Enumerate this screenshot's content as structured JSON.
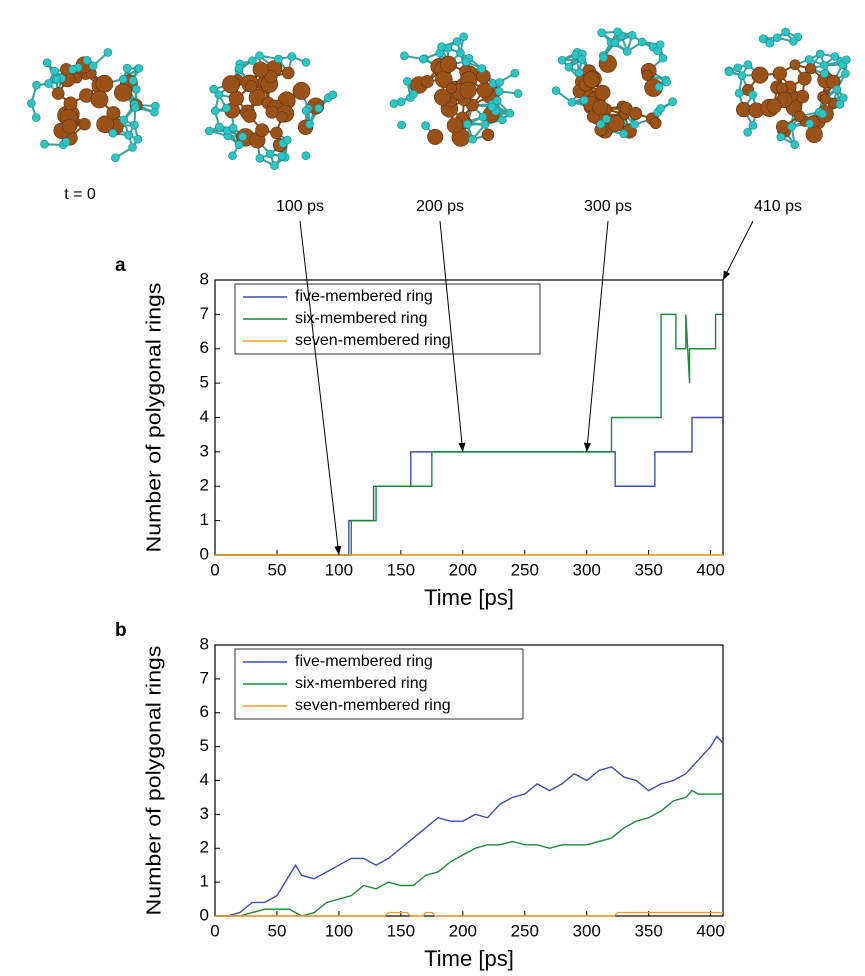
{
  "chart_data": [
    {
      "type": "line",
      "label": "a",
      "xlabel": "Time [ps]",
      "ylabel": "Number of polygonal rings",
      "xlim": [
        0,
        410
      ],
      "xticks": [
        0,
        50,
        100,
        150,
        200,
        250,
        300,
        350,
        400
      ],
      "ylim": [
        0,
        8
      ],
      "yticks": [
        0,
        1,
        2,
        3,
        4,
        5,
        6,
        7,
        8
      ],
      "legend": "upper left",
      "series": [
        {
          "name": "five-membered ring",
          "color": "#3b4fb0",
          "x": [
            0,
            108,
            108,
            128,
            128,
            158,
            158,
            323,
            323,
            355,
            355,
            385,
            385,
            410
          ],
          "values": [
            0,
            0,
            1,
            1,
            2,
            2,
            3,
            3,
            2,
            2,
            3,
            3,
            4,
            4
          ]
        },
        {
          "name": "six-membered ring",
          "color": "#1f8a3a",
          "x": [
            0,
            110,
            110,
            130,
            130,
            175,
            175,
            320,
            320,
            360,
            360,
            372,
            372,
            380,
            380,
            383,
            383,
            386,
            386,
            404,
            404,
            410
          ],
          "values": [
            0,
            0,
            1,
            1,
            2,
            2,
            3,
            3,
            4,
            4,
            7,
            7,
            6,
            6,
            7,
            5,
            6,
            6,
            6,
            6,
            7,
            7
          ]
        },
        {
          "name": "seven-membered ring",
          "color": "#f0a030",
          "x": [
            0,
            410
          ],
          "values": [
            0,
            0
          ]
        }
      ],
      "annotations": [
        {
          "text": "t = 0"
        },
        {
          "text": "100 ps",
          "x": 100,
          "y": 0
        },
        {
          "text": "200 ps",
          "x": 200,
          "y": 3
        },
        {
          "text": "300 ps",
          "x": 300,
          "y": 3
        },
        {
          "text": "410 ps",
          "x": 410,
          "y": 8
        }
      ]
    },
    {
      "type": "line",
      "label": "b",
      "xlabel": "Time [ps]",
      "ylabel": "Number of polygonal rings",
      "xlim": [
        0,
        410
      ],
      "xticks": [
        0,
        50,
        100,
        150,
        200,
        250,
        300,
        350,
        400
      ],
      "ylim": [
        0,
        8
      ],
      "yticks": [
        0,
        1,
        2,
        3,
        4,
        5,
        6,
        7,
        8
      ],
      "legend": "upper left",
      "series": [
        {
          "name": "five-membered ring",
          "color": "#3b4fb0",
          "x": [
            0,
            10,
            20,
            30,
            40,
            50,
            60,
            65,
            70,
            80,
            90,
            100,
            110,
            120,
            130,
            140,
            150,
            160,
            170,
            180,
            190,
            200,
            210,
            220,
            230,
            240,
            250,
            260,
            270,
            280,
            290,
            300,
            310,
            320,
            330,
            340,
            350,
            360,
            370,
            380,
            390,
            400,
            405,
            410
          ],
          "values": [
            0,
            0,
            0.1,
            0.4,
            0.4,
            0.6,
            1.2,
            1.5,
            1.2,
            1.1,
            1.3,
            1.5,
            1.7,
            1.7,
            1.5,
            1.7,
            2.0,
            2.3,
            2.6,
            2.9,
            2.8,
            2.8,
            3.0,
            2.9,
            3.3,
            3.5,
            3.6,
            3.9,
            3.7,
            3.9,
            4.2,
            4.0,
            4.3,
            4.4,
            4.1,
            4.0,
            3.7,
            3.9,
            4.0,
            4.2,
            4.6,
            5.0,
            5.3,
            5.1
          ]
        },
        {
          "name": "six-membered ring",
          "color": "#1f8a3a",
          "x": [
            0,
            20,
            30,
            40,
            60,
            70,
            80,
            90,
            100,
            110,
            120,
            130,
            140,
            150,
            160,
            170,
            180,
            190,
            200,
            210,
            220,
            230,
            240,
            250,
            260,
            270,
            280,
            290,
            300,
            310,
            320,
            330,
            340,
            350,
            360,
            370,
            380,
            385,
            390,
            410
          ],
          "values": [
            0,
            0,
            0.1,
            0.2,
            0.2,
            0,
            0.1,
            0.4,
            0.5,
            0.6,
            0.9,
            0.8,
            1.0,
            0.9,
            0.9,
            1.2,
            1.3,
            1.6,
            1.8,
            2.0,
            2.1,
            2.1,
            2.2,
            2.1,
            2.1,
            2.0,
            2.1,
            2.1,
            2.1,
            2.2,
            2.3,
            2.6,
            2.8,
            2.9,
            3.1,
            3.4,
            3.5,
            3.7,
            3.6,
            3.6
          ]
        },
        {
          "name": "seven-membered ring",
          "color": "#f0a030",
          "x": [
            0,
            137,
            140,
            155,
            158,
            168,
            170,
            175,
            178,
            322,
            325,
            410
          ],
          "values": [
            0,
            0,
            0.1,
            0.1,
            0,
            0,
            0.1,
            0.1,
            0,
            0,
            0.1,
            0.1
          ]
        }
      ]
    }
  ]
}
